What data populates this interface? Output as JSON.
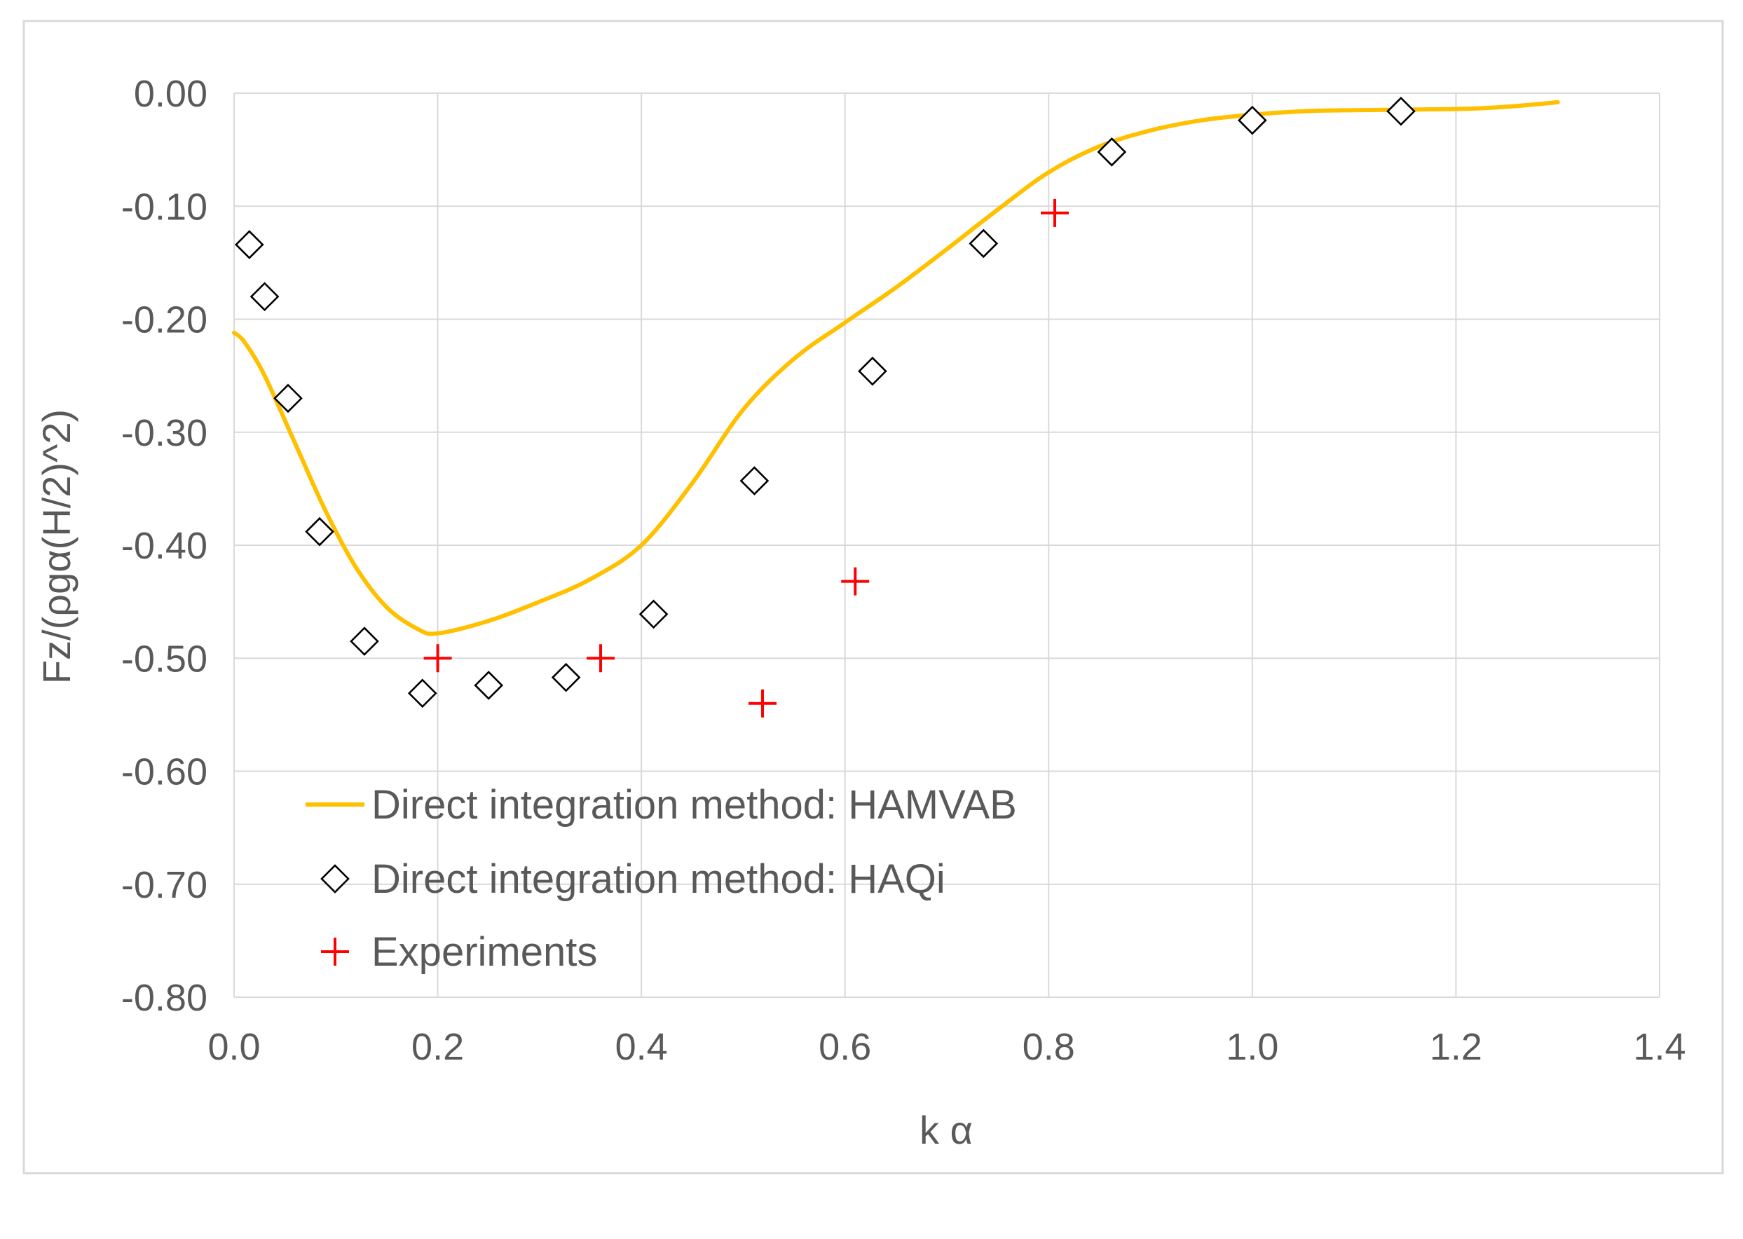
{
  "chart_data": {
    "type": "line",
    "title": "",
    "xlabel": "k α",
    "ylabel": "Fz/(ρgα(H/2)^2)",
    "xlim": [
      0.0,
      1.4
    ],
    "ylim": [
      -0.8,
      0.0
    ],
    "x_ticks": [
      0.0,
      0.2,
      0.4,
      0.6,
      0.8,
      1.0,
      1.2,
      1.4
    ],
    "x_tick_labels": [
      "0.0",
      "0.2",
      "0.4",
      "0.6",
      "0.8",
      "1.0",
      "1.2",
      "1.4"
    ],
    "y_ticks": [
      0.0,
      -0.1,
      -0.2,
      -0.3,
      -0.4,
      -0.5,
      -0.6,
      -0.7,
      -0.8
    ],
    "y_tick_labels": [
      "0.00",
      "-0.10",
      "-0.20",
      "-0.30",
      "-0.40",
      "-0.50",
      "-0.60",
      "-0.70",
      "-0.80"
    ],
    "grid": true,
    "legend_position": "bottom-left inside plot",
    "series": [
      {
        "name": "Direct integration method: HAMVAB",
        "kind": "line",
        "color": "#FFC000",
        "points": [
          [
            0.0,
            -0.212
          ],
          [
            0.01,
            -0.22
          ],
          [
            0.03,
            -0.25
          ],
          [
            0.06,
            -0.31
          ],
          [
            0.09,
            -0.37
          ],
          [
            0.12,
            -0.42
          ],
          [
            0.15,
            -0.455
          ],
          [
            0.18,
            -0.474
          ],
          [
            0.2,
            -0.478
          ],
          [
            0.25,
            -0.467
          ],
          [
            0.3,
            -0.45
          ],
          [
            0.35,
            -0.43
          ],
          [
            0.4,
            -0.4
          ],
          [
            0.45,
            -0.345
          ],
          [
            0.5,
            -0.28
          ],
          [
            0.55,
            -0.235
          ],
          [
            0.6,
            -0.203
          ],
          [
            0.65,
            -0.172
          ],
          [
            0.7,
            -0.138
          ],
          [
            0.75,
            -0.103
          ],
          [
            0.8,
            -0.07
          ],
          [
            0.85,
            -0.047
          ],
          [
            0.9,
            -0.033
          ],
          [
            0.95,
            -0.024
          ],
          [
            1.0,
            -0.019
          ],
          [
            1.05,
            -0.016
          ],
          [
            1.1,
            -0.015
          ],
          [
            1.2,
            -0.014
          ],
          [
            1.25,
            -0.012
          ],
          [
            1.3,
            -0.008
          ]
        ]
      },
      {
        "name": "Direct integration method: HAQi",
        "kind": "scatter",
        "marker": "diamond",
        "color": "#000000",
        "points": [
          [
            0.015,
            -0.134
          ],
          [
            0.03,
            -0.18
          ],
          [
            0.053,
            -0.27
          ],
          [
            0.084,
            -0.388
          ],
          [
            0.128,
            -0.485
          ],
          [
            0.185,
            -0.531
          ],
          [
            0.25,
            -0.524
          ],
          [
            0.326,
            -0.517
          ],
          [
            0.412,
            -0.461
          ],
          [
            0.511,
            -0.343
          ],
          [
            0.627,
            -0.246
          ],
          [
            0.736,
            -0.133
          ],
          [
            0.862,
            -0.052
          ],
          [
            1.0,
            -0.024
          ],
          [
            1.146,
            -0.016
          ]
        ]
      },
      {
        "name": "Experiments",
        "kind": "scatter",
        "marker": "plus",
        "color": "#FF0000",
        "points": [
          [
            0.2,
            -0.5
          ],
          [
            0.36,
            -0.5
          ],
          [
            0.519,
            -0.54
          ],
          [
            0.61,
            -0.432
          ],
          [
            0.806,
            -0.106
          ]
        ]
      }
    ]
  }
}
